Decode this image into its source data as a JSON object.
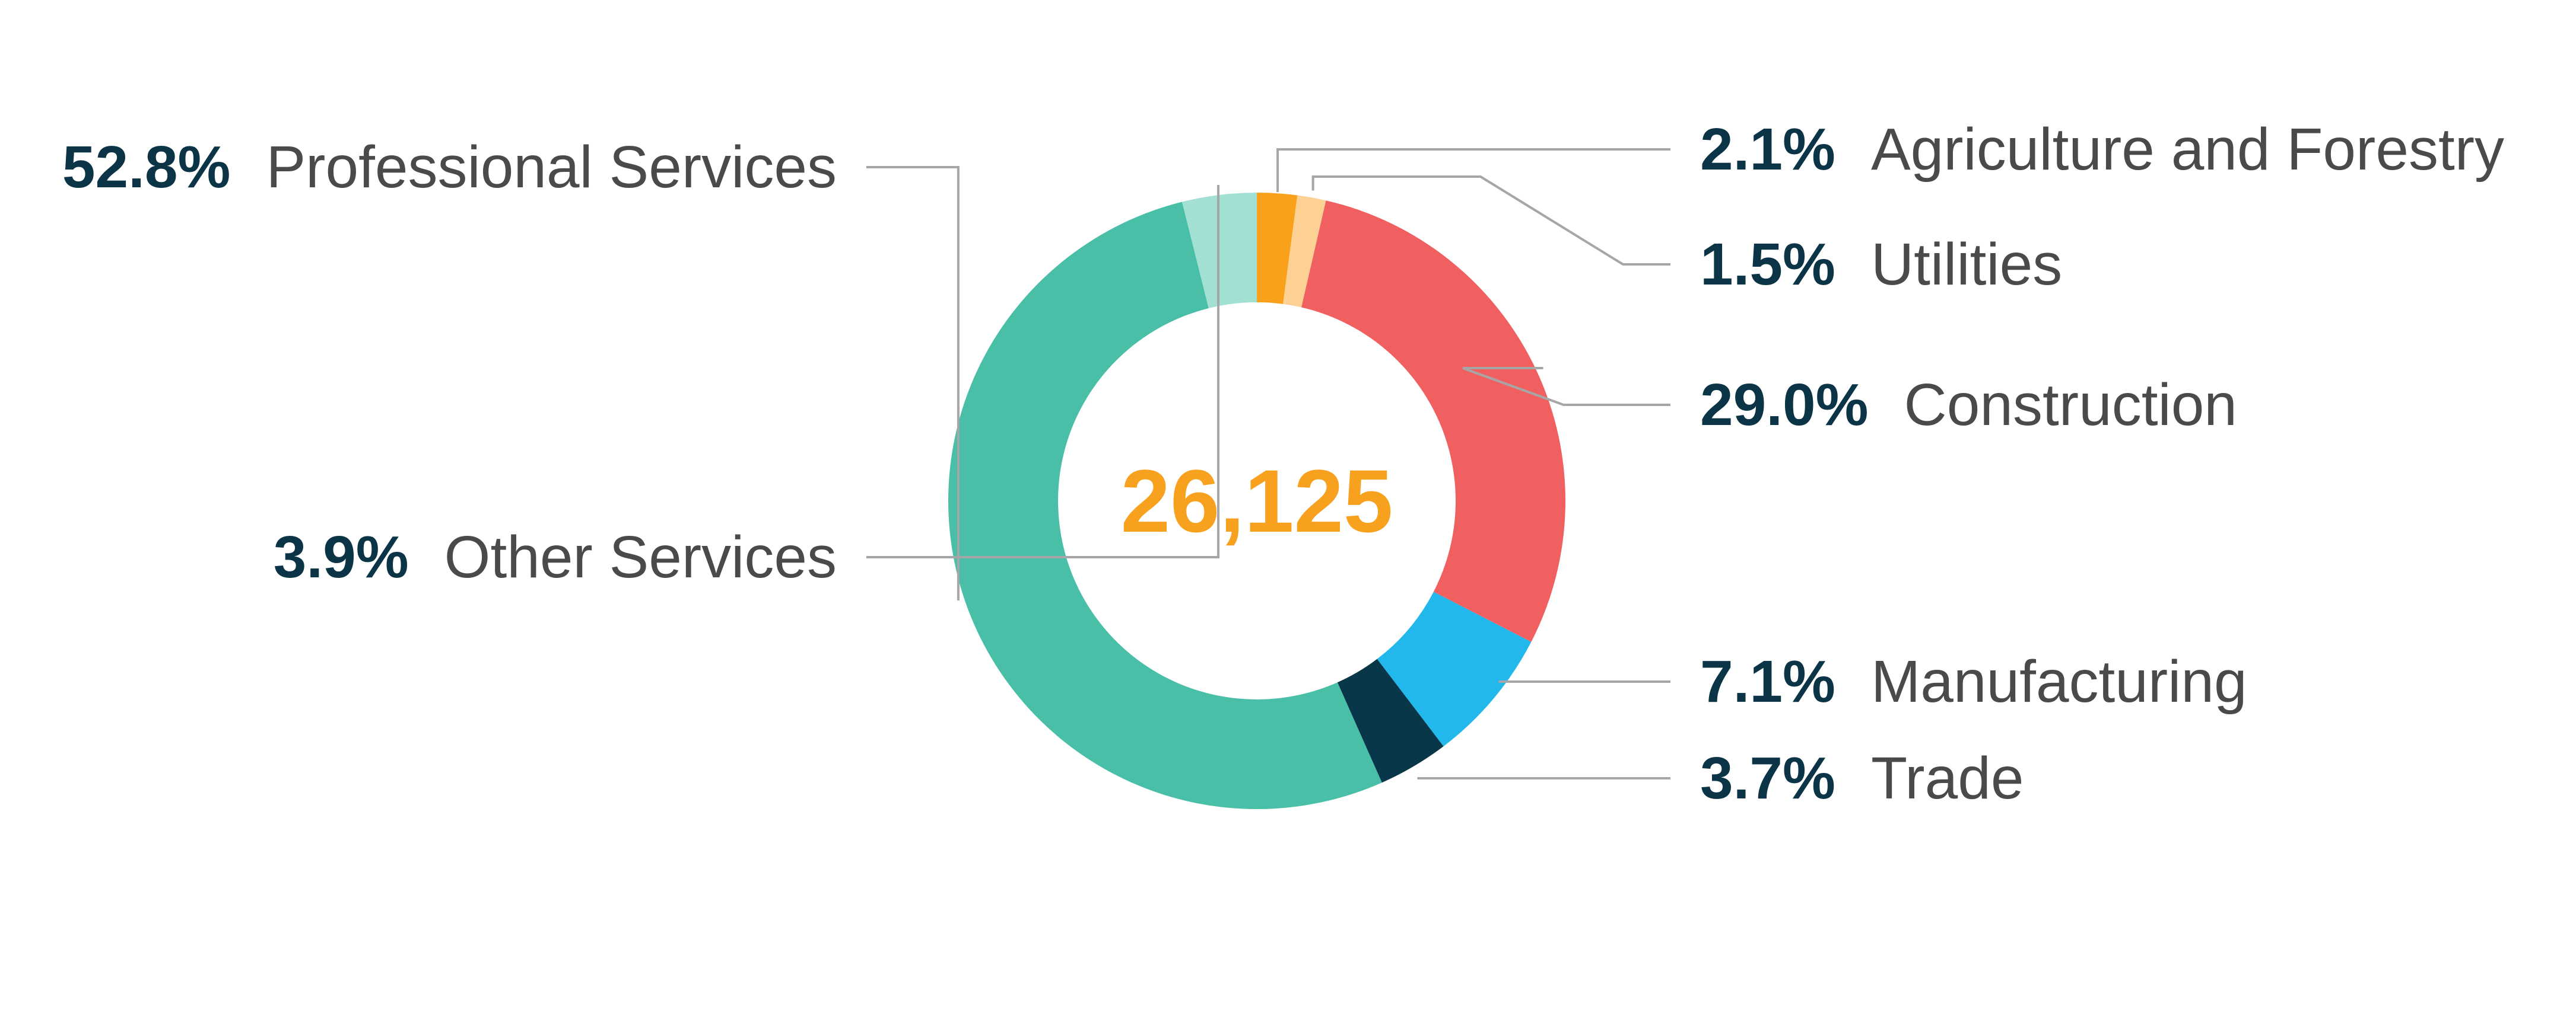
{
  "chart_data": {
    "type": "pie",
    "variant": "donut",
    "center_total": "26,125",
    "slices": [
      {
        "label": "Agriculture and Forestry",
        "value": 2.1,
        "value_label": "2.1%",
        "color": "#F9A11B"
      },
      {
        "label": "Utilities",
        "value": 1.5,
        "value_label": "1.5%",
        "color": "#FDD193"
      },
      {
        "label": "Construction",
        "value": 29.0,
        "value_label": "29.0%",
        "color": "#F16061"
      },
      {
        "label": "Manufacturing",
        "value": 7.1,
        "value_label": "7.1%",
        "color": "#22B8EB"
      },
      {
        "label": "Trade",
        "value": 3.7,
        "value_label": "3.7%",
        "color": "#073749"
      },
      {
        "label": "Professional Services",
        "value": 52.8,
        "value_label": "52.8%",
        "color": "#49BFA7"
      },
      {
        "label": "Other Services",
        "value": 3.9,
        "value_label": "3.9%",
        "color": "#A3E0D4"
      }
    ],
    "label_positions": [
      "right",
      "right",
      "right",
      "right",
      "right",
      "left",
      "left"
    ]
  },
  "colors": {
    "percent_text": "#0B3447",
    "label_text": "#4A4A4A",
    "center_text": "#F7A11E",
    "leader_line": "#A6A6A6",
    "background": "#FFFFFF"
  }
}
